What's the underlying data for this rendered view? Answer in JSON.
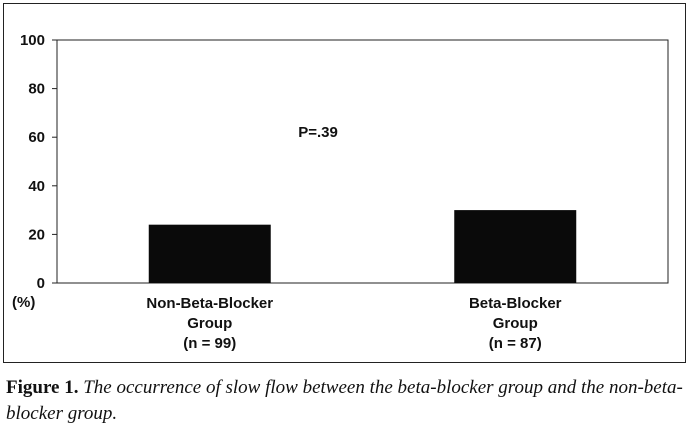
{
  "chart_data": {
    "type": "bar",
    "categories": [
      [
        "Non-Beta-Blocker",
        "Group",
        "(n = 99)"
      ],
      [
        "Beta-Blocker",
        "Group",
        "(n = 87)"
      ]
    ],
    "values": [
      24,
      30
    ],
    "ylim": [
      0,
      100
    ],
    "yticks": [
      0,
      20,
      40,
      60,
      80,
      100
    ],
    "ylabel": "(%)",
    "grid": false,
    "annotation": "P=.39",
    "bar_color": "#0a0a0a"
  },
  "caption": {
    "label": "Figure 1.",
    "text": "The occurrence of slow flow between the beta-blocker group and the non-beta-blocker group."
  }
}
